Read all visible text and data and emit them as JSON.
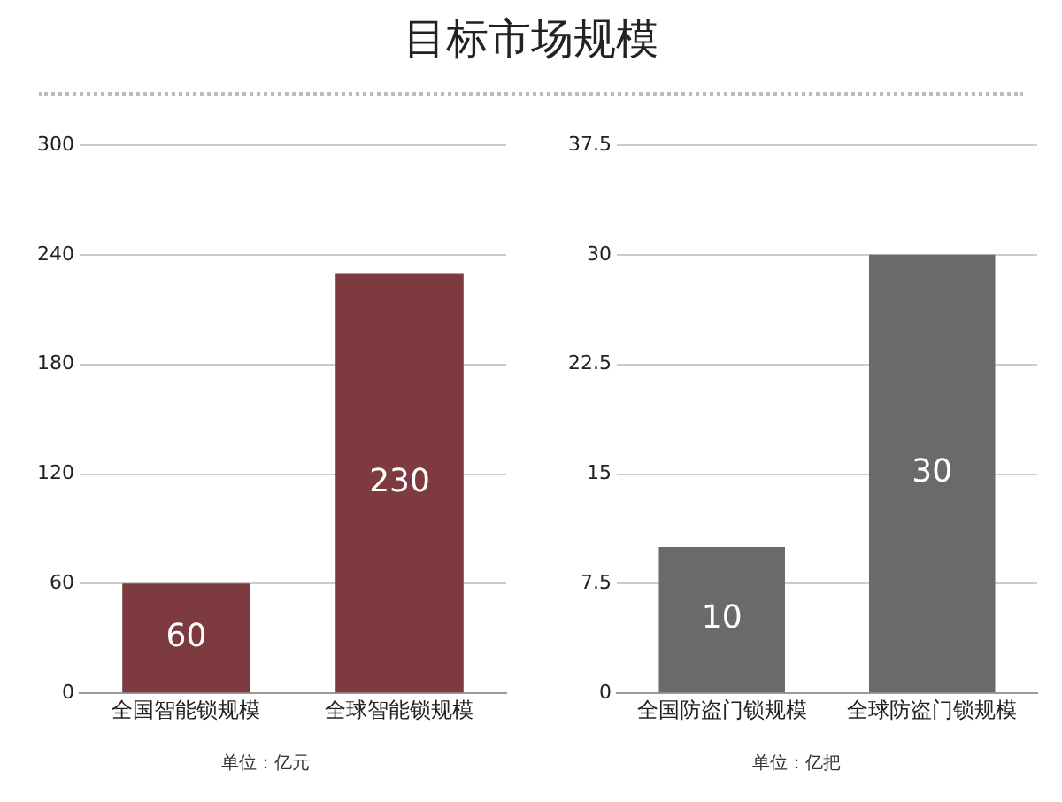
{
  "chart_data": [
    {
      "type": "bar",
      "title": "目标市场规模",
      "categories": [
        "全国智能锁规模",
        "全球智能锁规模"
      ],
      "values": [
        60,
        230
      ],
      "color": "#7d3b40",
      "ylim": [
        0,
        300
      ],
      "yticks": [
        0,
        60,
        120,
        180,
        240,
        300
      ],
      "grid": "y",
      "data_labels": true,
      "annotations": [
        "单位：亿元"
      ]
    },
    {
      "type": "bar",
      "categories": [
        "全国防盗门锁规模",
        "全球防盗门锁规模"
      ],
      "values": [
        10,
        30
      ],
      "color": "#6a6a6a",
      "ylim": [
        0,
        37.5
      ],
      "yticks": [
        0,
        7.5,
        15,
        22.5,
        30,
        37.5
      ],
      "grid": "y",
      "data_labels": true,
      "annotations": [
        "单位：亿把"
      ]
    }
  ]
}
